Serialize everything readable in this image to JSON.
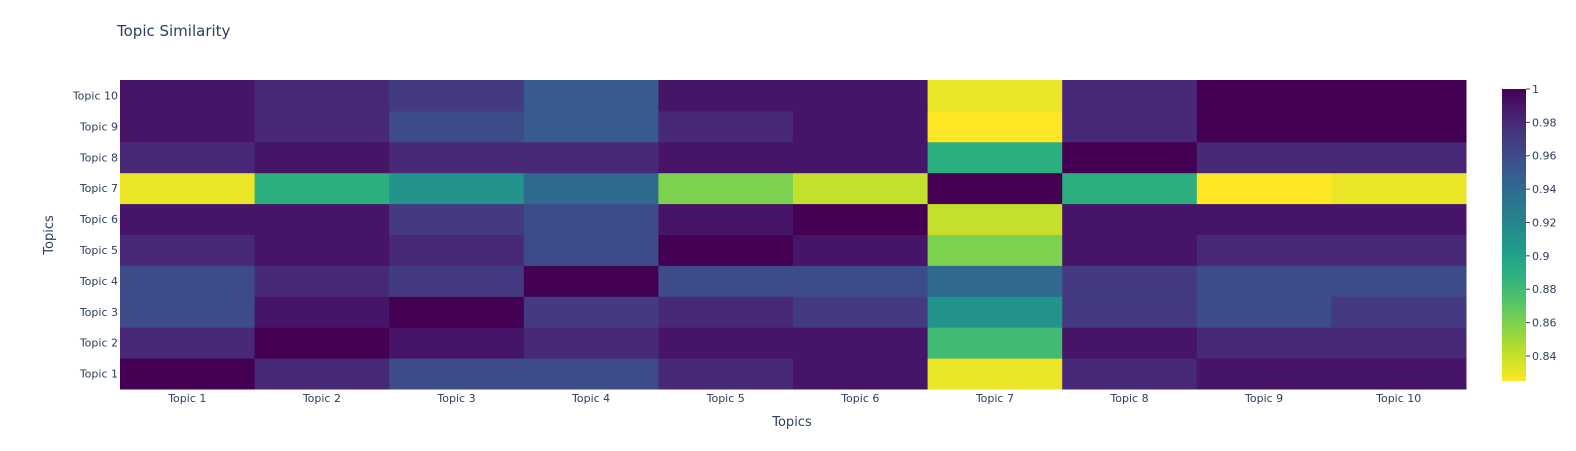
{
  "chart_data": {
    "type": "heatmap",
    "title": "Topic Similarity",
    "xlabel": "Topics",
    "ylabel": "Topics",
    "x": [
      "Topic 1",
      "Topic 2",
      "Topic 3",
      "Topic 4",
      "Topic 5",
      "Topic 6",
      "Topic 7",
      "Topic 8",
      "Topic 9",
      "Topic 10"
    ],
    "y": [
      "Topic 1",
      "Topic 2",
      "Topic 3",
      "Topic 4",
      "Topic 5",
      "Topic 6",
      "Topic 7",
      "Topic 8",
      "Topic 9",
      "Topic 10"
    ],
    "z": [
      [
        1.0,
        0.98,
        0.96,
        0.96,
        0.98,
        0.99,
        0.83,
        0.98,
        0.99,
        0.99
      ],
      [
        0.98,
        1.0,
        0.99,
        0.98,
        0.99,
        0.99,
        0.88,
        0.99,
        0.98,
        0.98
      ],
      [
        0.96,
        0.99,
        1.0,
        0.97,
        0.98,
        0.97,
        0.91,
        0.97,
        0.96,
        0.97
      ],
      [
        0.96,
        0.98,
        0.97,
        1.0,
        0.96,
        0.96,
        0.94,
        0.97,
        0.96,
        0.96
      ],
      [
        0.98,
        0.99,
        0.98,
        0.96,
        1.0,
        0.99,
        0.86,
        0.99,
        0.98,
        0.98
      ],
      [
        0.99,
        0.99,
        0.97,
        0.96,
        0.99,
        1.0,
        0.84,
        0.99,
        0.99,
        0.99
      ],
      [
        0.83,
        0.89,
        0.91,
        0.94,
        0.86,
        0.84,
        1.0,
        0.89,
        0.825,
        0.83
      ],
      [
        0.98,
        0.99,
        0.98,
        0.98,
        0.99,
        0.99,
        0.89,
        1.0,
        0.98,
        0.98
      ],
      [
        0.99,
        0.98,
        0.96,
        0.95,
        0.98,
        0.99,
        0.825,
        0.98,
        1.0,
        1.0
      ],
      [
        0.99,
        0.98,
        0.97,
        0.95,
        0.99,
        0.99,
        0.83,
        0.98,
        1.0,
        1.0
      ]
    ],
    "zlim": [
      0.825,
      1.0
    ],
    "colorscale": "viridis-reversed",
    "colorbar_ticks": [
      "0.84",
      "0.86",
      "0.88",
      "0.9",
      "0.92",
      "0.94",
      "0.96",
      "0.98",
      "1"
    ],
    "grid": false
  }
}
